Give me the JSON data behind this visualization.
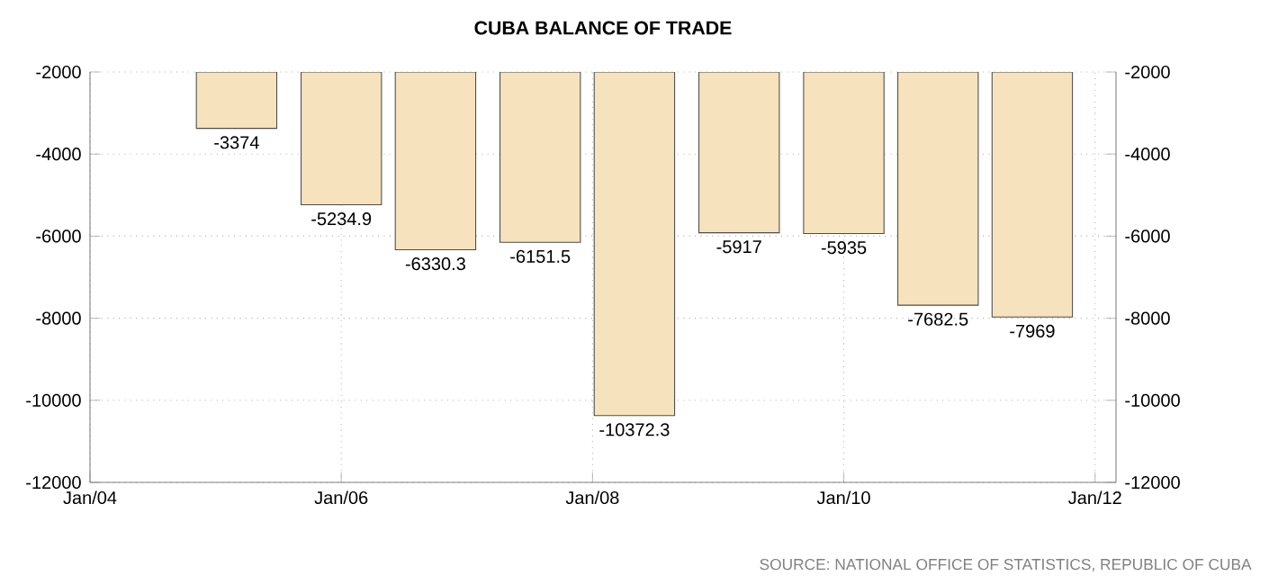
{
  "chart_data": {
    "type": "bar",
    "title": "CUBA BALANCE OF TRADE",
    "x": [
      "2005-03",
      "2006-01",
      "2006-10",
      "2007-08",
      "2008-05",
      "2009-03",
      "2010-01",
      "2010-10",
      "2011-07"
    ],
    "values": [
      -3374,
      -5234.9,
      -6330.3,
      -6151.5,
      -10372.3,
      -5917,
      -5935,
      -7682.5,
      -7969
    ],
    "value_labels": [
      "-3374",
      "-5234.9",
      "-6330.3",
      "-6151.5",
      "-10372.3",
      "-5917",
      "-5935",
      "-7682.5",
      "-7969"
    ],
    "color": "#f6e2bd",
    "xlim": [
      "2004-01",
      "2012-03"
    ],
    "xticks": [
      {
        "value": "2004-01",
        "label": "Jan/04"
      },
      {
        "value": "2006-01",
        "label": "Jan/06"
      },
      {
        "value": "2008-01",
        "label": "Jan/08"
      },
      {
        "value": "2010-01",
        "label": "Jan/10"
      },
      {
        "value": "2012-01",
        "label": "Jan/12"
      }
    ],
    "ylim": [
      -12000,
      -2000
    ],
    "yticks": [
      -12000,
      -10000,
      -8000,
      -6000,
      -4000,
      -2000
    ],
    "y2lim": [
      -12000,
      -2000
    ],
    "y2ticks": [
      -12000,
      -10000,
      -8000,
      -6000,
      -4000,
      -2000
    ],
    "grid": true,
    "annotations": [
      "SOURCE: NATIONAL OFFICE OF STATISTICS, REPUBLIC OF CUBA"
    ]
  }
}
